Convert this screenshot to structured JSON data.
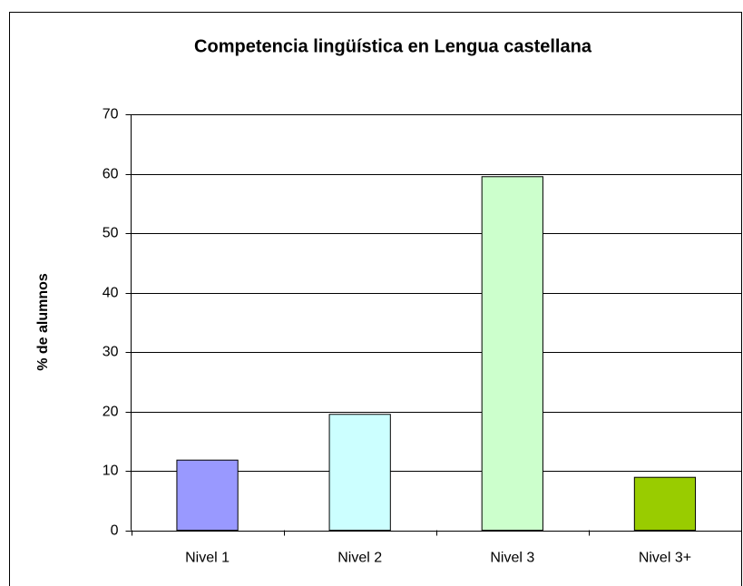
{
  "chart_data": {
    "type": "bar",
    "title": "Competencia  lingüística en Lengua castellana",
    "ylabel": "% de alumnos",
    "categories": [
      "Nivel 1",
      "Nivel 2",
      "Nivel 3",
      "Nivel 3+"
    ],
    "values": [
      11.8,
      19.5,
      59.5,
      8.9
    ],
    "colors": [
      "#9999ff",
      "#ccffff",
      "#ccffcc",
      "#99cc00"
    ],
    "ylim": [
      0,
      70
    ],
    "yticks": [
      0,
      10,
      20,
      30,
      40,
      50,
      60,
      70
    ],
    "grid": true
  }
}
